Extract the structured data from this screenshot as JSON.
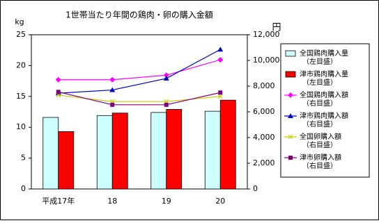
{
  "chart_data": {
    "type": "bar_line",
    "title": "1世帯当たり年間の鶏肉・卵の購入金額",
    "y_label": "kg",
    "y2_label": "円",
    "categories": [
      "平成17年",
      "18",
      "19",
      "20"
    ],
    "ylim": [
      0,
      25
    ],
    "yticks": [
      0,
      5,
      10,
      15,
      20,
      25
    ],
    "y2lim": [
      0,
      12000
    ],
    "y2ticks": [
      0,
      {
        "value": 2000,
        "label": "2,000"
      },
      {
        "value": 4000,
        "label": "4,000"
      },
      {
        "value": 6000,
        "label": "6,000"
      },
      {
        "value": 8000,
        "label": "8,000"
      },
      {
        "value": 10000,
        "label": "10,000"
      },
      {
        "value": 12000,
        "label": "12,000"
      }
    ],
    "series": [
      {
        "name": "全国鶏肉購入量",
        "axis_note": "（左目盛）",
        "kind": "bar",
        "color": "#ccffff",
        "values": [
          11.6,
          11.9,
          12.4,
          12.6
        ]
      },
      {
        "name": "津市鶏肉購入量",
        "axis_note": "（左目盛）",
        "kind": "bar",
        "color": "#ff0000",
        "values": [
          9.3,
          12.3,
          12.9,
          14.4
        ]
      },
      {
        "name": "全国鶏肉購入額",
        "axis_note": "（右目盛）",
        "kind": "line",
        "axis": "y2",
        "marker": "diamond",
        "color": "#ff00ff",
        "values": [
          8500,
          8500,
          8850,
          10050
        ]
      },
      {
        "name": "津市鶏肉購入額",
        "axis_note": "（右目盛）",
        "kind": "line",
        "axis": "y2",
        "marker": "triangle",
        "color": "#0000cc",
        "values": [
          7450,
          7700,
          8600,
          10850
        ]
      },
      {
        "name": "全国卵購入額",
        "axis_note": "（右目盛）",
        "kind": "line",
        "axis": "y2",
        "marker": "x",
        "color": "#cccc00",
        "values": [
          7300,
          6800,
          6800,
          7200
        ]
      },
      {
        "name": "津市卵購入額",
        "axis_note": "（右目盛）",
        "kind": "line",
        "axis": "y2",
        "marker": "square",
        "color": "#800080",
        "values": [
          7550,
          6550,
          6550,
          7500
        ]
      }
    ]
  }
}
